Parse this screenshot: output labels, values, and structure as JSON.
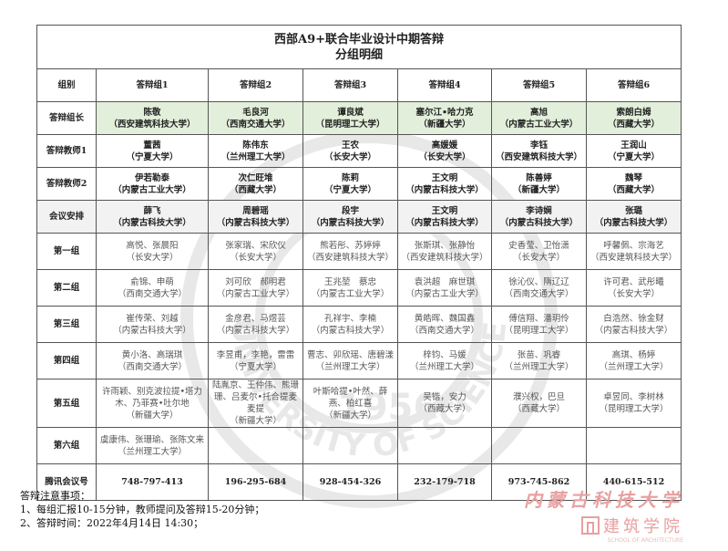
{
  "title": {
    "line1": "西部A9+联合毕业设计中期答辩",
    "line2": "分组明细"
  },
  "header": {
    "label": "组别",
    "groups": [
      "答辩组1",
      "答辩组2",
      "答辩组3",
      "答辩组4",
      "答辩组5",
      "答辩组6"
    ]
  },
  "rows": {
    "leader": {
      "label": "答辩组长",
      "cells": [
        {
          "name": "陈敬",
          "org": "（西安建筑科技大学）"
        },
        {
          "name": "毛良河",
          "org": "（西南交通大学）"
        },
        {
          "name": "谭良斌",
          "org": "（昆明理工大学）"
        },
        {
          "name": "塞尔江•哈力克",
          "org": "（新疆大学）"
        },
        {
          "name": "高旭",
          "org": "（内蒙古工业大学）"
        },
        {
          "name": "索朗白姆",
          "org": "（西藏大学）"
        }
      ]
    },
    "teacher1": {
      "label": "答辩教师1",
      "cells": [
        {
          "name": "董茜",
          "org": "（宁夏大学）"
        },
        {
          "name": "陈伟东",
          "org": "（兰州理工大学）"
        },
        {
          "name": "王农",
          "org": "（长安大学）"
        },
        {
          "name": "高媛媛",
          "org": "（长安大学）"
        },
        {
          "name": "李钰",
          "org": "（西安建筑科技大学）"
        },
        {
          "name": "王润山",
          "org": "（宁夏大学）"
        }
      ]
    },
    "teacher2": {
      "label": "答辩教师2",
      "cells": [
        {
          "name": "伊若勒泰",
          "org": "（内蒙古工业大学）"
        },
        {
          "name": "次仁旺堆",
          "org": "（西藏大学）"
        },
        {
          "name": "陈莉",
          "org": "（宁夏大学）"
        },
        {
          "name": "王文明",
          "org": "（内蒙古科技大学）"
        },
        {
          "name": "陈善婷",
          "org": "（新疆大学）"
        },
        {
          "name": "魏琴",
          "org": "（西藏大学）"
        }
      ]
    },
    "meeting": {
      "label": "会议安排",
      "cells": [
        {
          "name": "薛飞",
          "org": "（内蒙古科技大学）"
        },
        {
          "name": "周碧瑶",
          "org": "（内蒙古科技大学）"
        },
        {
          "name": "段宇",
          "org": "（内蒙古科技大学）"
        },
        {
          "name": "王文明",
          "org": "（内蒙古科技大学）"
        },
        {
          "name": "李诗娴",
          "org": "（内蒙古科技大学）"
        },
        {
          "name": "张璐",
          "org": "（内蒙古科技大学）"
        }
      ]
    },
    "g1": {
      "label": "第一组",
      "cells": [
        {
          "name": "高悦、张晨阳",
          "org": "（长安大学）"
        },
        {
          "name": "张家瑞、宋欣仪",
          "org": "（长安大学）"
        },
        {
          "name": "熊若彤、苏婷婷",
          "org": "（西安建筑科技大学）"
        },
        {
          "name": "张斯琪、张静怡",
          "org": "（西安建筑科技大学）"
        },
        {
          "name": "史香莹、卫怡潇",
          "org": "（长安大学）"
        },
        {
          "name": "呼馨佩、宗海艺",
          "org": "（西安建筑科技大学）"
        }
      ]
    },
    "g2": {
      "label": "第二组",
      "cells": [
        {
          "name": "俞锦、申萌",
          "org": "（西南交通大学）"
        },
        {
          "name": "刘可欣　郝明君",
          "org": "（内蒙古工业大学）"
        },
        {
          "name": "王兆堃　蔡忠",
          "org": "（内蒙古工业大学）"
        },
        {
          "name": "袁洪超　麻世琪",
          "org": "（内蒙古工业大学）"
        },
        {
          "name": "徐沁仪、隋辽辽",
          "org": "（西南交通大学）"
        },
        {
          "name": "许可君、武彤曦",
          "org": "（长安大学）"
        }
      ]
    },
    "g3": {
      "label": "第三组",
      "cells": [
        {
          "name": "崔传荣、刘越",
          "org": "（内蒙古科技大学）"
        },
        {
          "name": "金彦君、马煜芸",
          "org": "（内蒙古科技大学）"
        },
        {
          "name": "孔祥宇、李楠",
          "org": "（内蒙古科技大学）"
        },
        {
          "name": "黄皓晖、魏国鑫",
          "org": "（西南交通大学）"
        },
        {
          "name": "傅信翔、潘玥伶",
          "org": "（昆明理工大学）"
        },
        {
          "name": "白浩然、徐金财",
          "org": "（内蒙古科技大学）"
        }
      ]
    },
    "g4": {
      "label": "第四组",
      "cells": [
        {
          "name": "黄小洛、高瑞琪",
          "org": "（西南交通大学）"
        },
        {
          "name": "李昱甫，李艳，雷雷",
          "org": "（宁夏大学）"
        },
        {
          "name": "曹志、卯欣瑶、唐碧漾",
          "org": "（兰州理工大学）"
        },
        {
          "name": "梓钧、马媛",
          "org": "（兰州理工大学）"
        },
        {
          "name": "张苗、巩睿",
          "org": "（兰州理工大学）"
        },
        {
          "name": "高琪、杨婷",
          "org": "（兰州理工大学）"
        }
      ]
    },
    "g5": {
      "label": "第五组",
      "cells": [
        {
          "name": "许雨颖、别克波拉提•塔力木、乃菲赛•吐尔地",
          "org": "（新疆大学）"
        },
        {
          "name": "陆胤京、王仲伟、熊珊珊、吕麦尔•托合提麦麦提",
          "org": "（新疆大学）"
        },
        {
          "name": "叶斯哈提•叶然、薛燕、柏红喜",
          "org": "（新疆大学）"
        },
        {
          "name": "吴锴，安力",
          "org": "（西藏大学）"
        },
        {
          "name": "濮兴权，巴旦",
          "org": "（西藏大学）"
        },
        {
          "name": "卓昱同、李树林",
          "org": "（昆明理工大学）"
        }
      ]
    },
    "g6": {
      "label": "第六组",
      "cells": [
        {
          "name": "虞康伟、张珊瑜、张陈文来",
          "org": "（兰州理工大学）"
        },
        {
          "name": "",
          "org": ""
        },
        {
          "name": "",
          "org": ""
        },
        {
          "name": "",
          "org": ""
        },
        {
          "name": "",
          "org": ""
        },
        {
          "name": "",
          "org": ""
        }
      ]
    },
    "tencent": {
      "label": "腾讯会议号",
      "values": [
        "748-797-413",
        "196-295-684",
        "928-454-326",
        "232-179-718",
        "973-745-862",
        "440-615-512"
      ]
    }
  },
  "notes": {
    "heading": "答辩注意事项：",
    "items": [
      "1、每组汇报10-15分钟，教师提问及答辩15-20分钟；",
      "2、答辩时间：2022年4月14日 14:30；"
    ]
  },
  "logo": {
    "calligraphy": "内蒙古科技大学",
    "cn": "建筑学院",
    "en": "SCHOOL OF ARCHITECTURE"
  },
  "watermark": {
    "text": "INNER MONGOLIA UNIVERSITY OF SCIENCE & TECHNOLOGY",
    "year": "1956"
  },
  "colors": {
    "leader_bg": "#e2efda",
    "meeting_bg": "#f2f2f2",
    "logo_red": "#e8a0a0"
  }
}
